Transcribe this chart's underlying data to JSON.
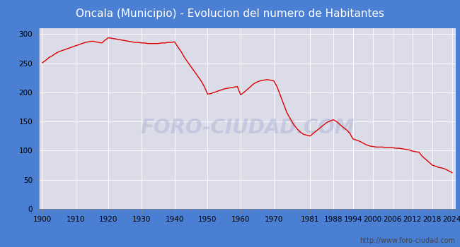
{
  "title": "Oncala (Municipio) - Evolucion del numero de Habitantes",
  "title_color": "white",
  "title_bg_color": "#4a7fd4",
  "line_color": "#dd0000",
  "fig_bg_color": "#4a7fd4",
  "plot_bg_color": "#dcdce8",
  "grid_color": "white",
  "watermark": "FORO-CIUDAD.COM",
  "url": "http://www.foro-ciudad.com",
  "years": [
    1900,
    1901,
    1902,
    1903,
    1904,
    1905,
    1906,
    1907,
    1908,
    1909,
    1910,
    1911,
    1912,
    1913,
    1914,
    1915,
    1916,
    1917,
    1918,
    1919,
    1920,
    1921,
    1922,
    1923,
    1924,
    1925,
    1926,
    1927,
    1928,
    1929,
    1930,
    1931,
    1932,
    1933,
    1934,
    1935,
    1936,
    1937,
    1938,
    1939,
    1940,
    1941,
    1942,
    1943,
    1944,
    1945,
    1946,
    1947,
    1948,
    1949,
    1950,
    1951,
    1952,
    1953,
    1954,
    1955,
    1956,
    1957,
    1958,
    1959,
    1960,
    1961,
    1962,
    1963,
    1964,
    1965,
    1966,
    1967,
    1968,
    1969,
    1970,
    1971,
    1972,
    1973,
    1974,
    1975,
    1976,
    1977,
    1978,
    1979,
    1981,
    1986,
    1988,
    1989,
    1990,
    1991,
    1992,
    1993,
    1994,
    1995,
    1996,
    1997,
    1998,
    1999,
    2000,
    2001,
    2002,
    2003,
    2004,
    2005,
    2006,
    2007,
    2008,
    2009,
    2010,
    2011,
    2012,
    2013,
    2014,
    2015,
    2016,
    2017,
    2018,
    2019,
    2020,
    2021,
    2022,
    2023,
    2024
  ],
  "population": [
    251,
    255,
    260,
    263,
    267,
    270,
    272,
    274,
    276,
    278,
    280,
    282,
    284,
    286,
    287,
    288,
    287,
    286,
    285,
    290,
    294,
    293,
    292,
    291,
    290,
    289,
    288,
    287,
    286,
    286,
    285,
    285,
    284,
    284,
    284,
    284,
    285,
    285,
    286,
    286,
    287,
    278,
    270,
    260,
    252,
    244,
    236,
    228,
    220,
    210,
    197,
    198,
    200,
    202,
    204,
    206,
    207,
    208,
    209,
    210,
    196,
    200,
    205,
    210,
    215,
    218,
    220,
    221,
    222,
    221,
    220,
    210,
    195,
    180,
    165,
    155,
    145,
    138,
    132,
    128,
    125,
    148,
    153,
    150,
    145,
    140,
    136,
    130,
    120,
    118,
    116,
    113,
    110,
    108,
    107,
    106,
    106,
    106,
    105,
    105,
    105,
    104,
    104,
    103,
    102,
    101,
    99,
    98,
    97,
    90,
    85,
    80,
    75,
    73,
    71,
    70,
    68,
    65,
    62
  ],
  "xticks": [
    1900,
    1910,
    1920,
    1930,
    1940,
    1950,
    1960,
    1970,
    1981,
    1988,
    1994,
    2000,
    2006,
    2012,
    2018,
    2024
  ],
  "yticks": [
    0,
    50,
    100,
    150,
    200,
    250,
    300
  ],
  "xlim": [
    1899,
    2025
  ],
  "ylim": [
    0,
    310
  ],
  "title_fontsize": 11,
  "tick_fontsize": 7.5,
  "url_fontsize": 7
}
